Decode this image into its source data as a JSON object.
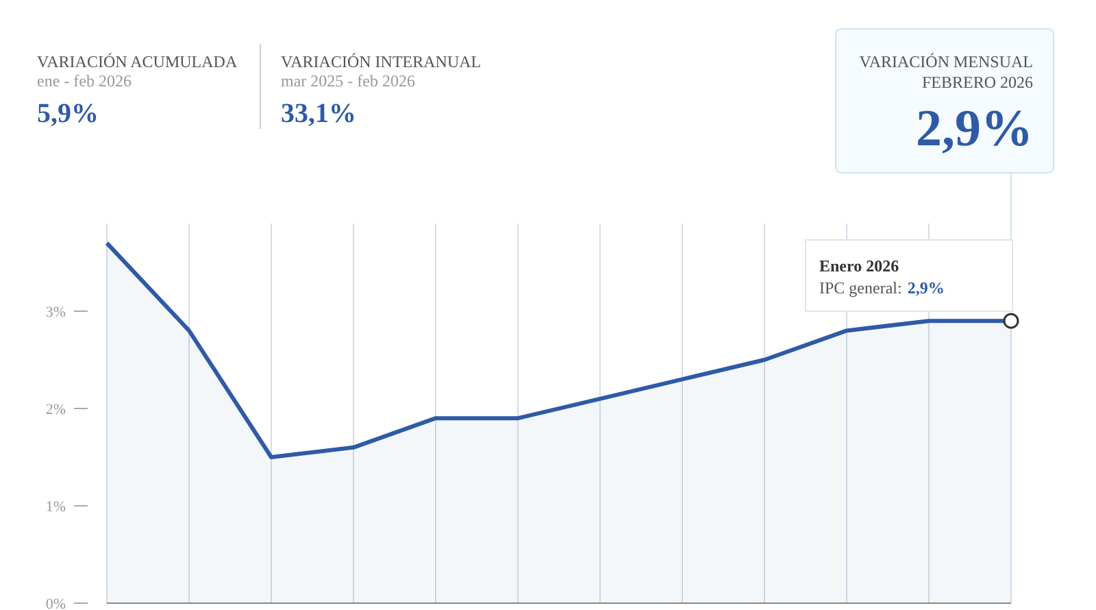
{
  "chart_data": {
    "type": "area",
    "categories": [
      null,
      null,
      null,
      null,
      null,
      null,
      null,
      null,
      null,
      null,
      null,
      null
    ],
    "series": [
      {
        "color": "#2f5aa6",
        "values": [
          3.7,
          2.8,
          1.5,
          1.6,
          1.9,
          1.9,
          2.1,
          2.3,
          2.5,
          2.8,
          2.9,
          2.9
        ]
      }
    ],
    "ylim": [
      0,
      3.9
    ],
    "yticks": [
      {
        "value": 0,
        "label": "0%"
      },
      {
        "value": 1,
        "label": "1%"
      },
      {
        "value": 2,
        "label": "2%"
      },
      {
        "value": 3,
        "label": "3%"
      }
    ],
    "grid": "x",
    "tick_labels": "y",
    "marker": "none",
    "annotations": [
      "VARIACIÓN ACUMULADA",
      "ene - feb 2026",
      "5,9%",
      "VARIACIÓN INTERANUAL",
      "mar 2025 - feb 2026",
      "33,1%",
      "VARIACIÓN MENSUAL",
      "FEBRERO 2026",
      "2,9%",
      "Enero 2026",
      "IPC general:",
      "2,9%"
    ]
  }
}
